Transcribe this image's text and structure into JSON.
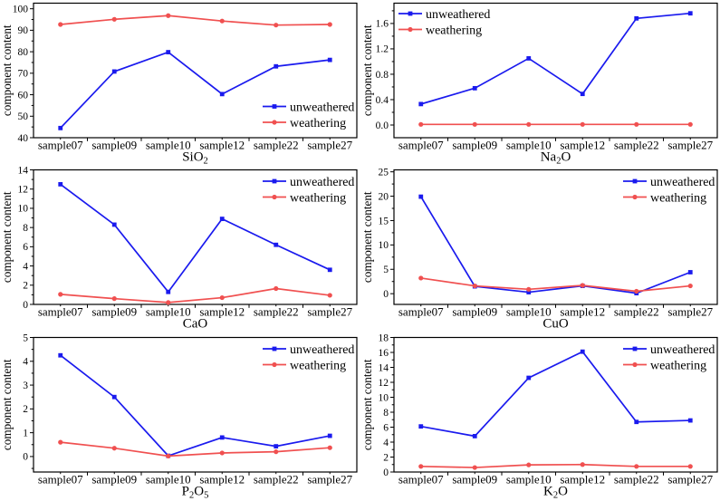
{
  "figure": {
    "background": "#ffffff",
    "text_color": "#000000",
    "axis_color": "#000000"
  },
  "chart_data": [
    {
      "type": "line",
      "title": "SiO₂",
      "ylabel": "component content",
      "categories": [
        "sample07",
        "sample09",
        "sample10",
        "sample12",
        "sample22",
        "sample27"
      ],
      "ylim": [
        40,
        102.6
      ],
      "yticks": [
        40,
        50,
        60,
        70,
        80,
        90,
        100
      ],
      "ytick_decimals": 0,
      "grid": false,
      "legend_pos": "bottom-right",
      "series": [
        {
          "name": "unweathered",
          "color": "#1a1aee",
          "marker": "square",
          "values": [
            44.5,
            70.8,
            79.8,
            60.3,
            73.2,
            76.2
          ]
        },
        {
          "name": "weathering",
          "color": "#f05050",
          "marker": "circle",
          "values": [
            92.7,
            95.1,
            96.8,
            94.3,
            92.4,
            92.7
          ]
        }
      ]
    },
    {
      "type": "line",
      "title": "Na₂O",
      "ylabel": "component content",
      "categories": [
        "sample07",
        "sample09",
        "sample10",
        "sample12",
        "sample22",
        "sample27"
      ],
      "ylim": [
        -0.2,
        1.92
      ],
      "yticks": [
        0.0,
        0.4,
        0.8,
        1.2,
        1.6
      ],
      "ytick_decimals": 1,
      "grid": false,
      "legend_pos": "top-left",
      "series": [
        {
          "name": "unweathered",
          "color": "#1a1aee",
          "marker": "square",
          "values": [
            0.33,
            0.58,
            1.05,
            0.49,
            1.68,
            1.76
          ]
        },
        {
          "name": "weathering",
          "color": "#f05050",
          "marker": "circle",
          "values": [
            0.01,
            0.01,
            0.01,
            0.01,
            0.01,
            0.01
          ]
        }
      ]
    },
    {
      "type": "line",
      "title": "CaO",
      "ylabel": "component content",
      "categories": [
        "sample07",
        "sample09",
        "sample10",
        "sample12",
        "sample22",
        "sample27"
      ],
      "ylim": [
        0,
        14
      ],
      "yticks": [
        0,
        2,
        4,
        6,
        8,
        10,
        12,
        14
      ],
      "ytick_decimals": 0,
      "grid": false,
      "legend_pos": "top-right",
      "series": [
        {
          "name": "unweathered",
          "color": "#1a1aee",
          "marker": "square",
          "values": [
            12.5,
            8.3,
            1.3,
            8.9,
            6.2,
            3.6
          ]
        },
        {
          "name": "weathering",
          "color": "#f05050",
          "marker": "circle",
          "values": [
            1.05,
            0.6,
            0.2,
            0.7,
            1.65,
            0.95
          ]
        }
      ]
    },
    {
      "type": "line",
      "title": "CuO",
      "ylabel": "component content",
      "categories": [
        "sample07",
        "sample09",
        "sample10",
        "sample12",
        "sample22",
        "sample27"
      ],
      "ylim": [
        -2.2,
        25.4
      ],
      "yticks": [
        0,
        5,
        10,
        15,
        20,
        25
      ],
      "ytick_decimals": 0,
      "grid": false,
      "legend_pos": "top-right",
      "series": [
        {
          "name": "unweathered",
          "color": "#1a1aee",
          "marker": "square",
          "values": [
            19.9,
            1.5,
            0.3,
            1.6,
            0.1,
            4.4
          ]
        },
        {
          "name": "weathering",
          "color": "#f05050",
          "marker": "circle",
          "values": [
            3.2,
            1.6,
            0.9,
            1.7,
            0.5,
            1.6
          ]
        }
      ]
    },
    {
      "type": "line",
      "title": "P₂O₅",
      "ylabel": "component content",
      "categories": [
        "sample07",
        "sample09",
        "sample10",
        "sample12",
        "sample22",
        "sample27"
      ],
      "ylim": [
        -0.65,
        5.0
      ],
      "yticks": [
        0,
        1,
        2,
        3,
        4,
        5
      ],
      "ytick_decimals": 0,
      "grid": false,
      "legend_pos": "top-right",
      "series": [
        {
          "name": "unweathered",
          "color": "#1a1aee",
          "marker": "square",
          "values": [
            4.25,
            2.5,
            0.03,
            0.8,
            0.43,
            0.87
          ]
        },
        {
          "name": "weathering",
          "color": "#f05050",
          "marker": "circle",
          "values": [
            0.6,
            0.35,
            0.02,
            0.15,
            0.2,
            0.37
          ]
        }
      ]
    },
    {
      "type": "line",
      "title": "K₂O",
      "ylabel": "component content",
      "categories": [
        "sample07",
        "sample09",
        "sample10",
        "sample12",
        "sample22",
        "sample27"
      ],
      "ylim": [
        0,
        18
      ],
      "yticks": [
        0,
        2,
        4,
        6,
        8,
        10,
        12,
        14,
        16,
        18
      ],
      "ytick_decimals": 0,
      "grid": false,
      "legend_pos": "top-right",
      "series": [
        {
          "name": "unweathered",
          "color": "#1a1aee",
          "marker": "square",
          "values": [
            6.1,
            4.8,
            12.6,
            16.1,
            6.7,
            6.9
          ]
        },
        {
          "name": "weathering",
          "color": "#f05050",
          "marker": "circle",
          "values": [
            0.75,
            0.6,
            0.95,
            1.0,
            0.75,
            0.75
          ]
        }
      ]
    }
  ]
}
